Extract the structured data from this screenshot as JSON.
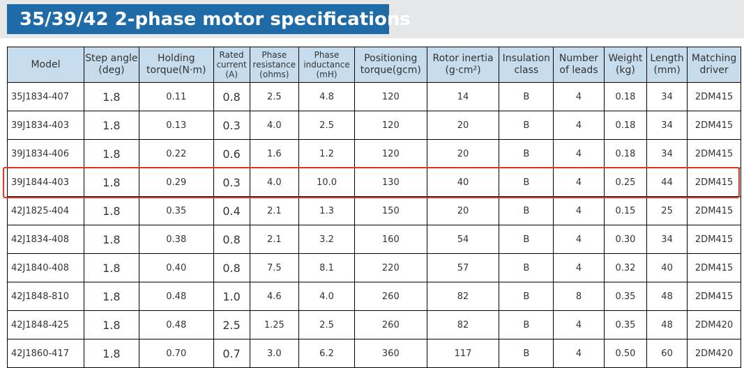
{
  "title": "35/39/42 2-phase motor specifications",
  "highlight_color": "#e8301f",
  "header_color": "#c6dcec",
  "title_color": "#1f6ba8",
  "columns": [
    {
      "l1": "Model",
      "l2": ""
    },
    {
      "l1": "Step angle",
      "l2": "(deg)"
    },
    {
      "l1": "Holding",
      "l2": "torque(N·m)"
    },
    {
      "l1": "Rated current",
      "l2": "(A)"
    },
    {
      "l1": "Phase resistance",
      "l2": "(ohms)"
    },
    {
      "l1": "Phase inductance",
      "l2": "(mH)"
    },
    {
      "l1": "Positioning",
      "l2": "torque(gcm)"
    },
    {
      "l1": "Rotor inertia",
      "l2": "(g·cm²)"
    },
    {
      "l1": "Insulation",
      "l2": "class"
    },
    {
      "l1": "Number",
      "l2": "of leads"
    },
    {
      "l1": "Weight",
      "l2": "(kg)"
    },
    {
      "l1": "Length",
      "l2": "(mm)"
    },
    {
      "l1": "Matching",
      "l2": "driver"
    }
  ],
  "highlighted_row": 3,
  "rows": [
    [
      "35J1834-407",
      "1.8",
      "0.11",
      "0.8",
      "2.5",
      "4.8",
      "120",
      "14",
      "B",
      "4",
      "0.18",
      "34",
      "2DM415"
    ],
    [
      "39J1834-403",
      "1.8",
      "0.13",
      "0.3",
      "4.0",
      "2.5",
      "120",
      "20",
      "B",
      "4",
      "0.18",
      "34",
      "2DM415"
    ],
    [
      "39J1834-406",
      "1.8",
      "0.22",
      "0.6",
      "1.6",
      "1.2",
      "120",
      "20",
      "B",
      "4",
      "0.18",
      "34",
      "2DM415"
    ],
    [
      "39J1844-403",
      "1.8",
      "0.29",
      "0.3",
      "4.0",
      "10.0",
      "130",
      "40",
      "B",
      "4",
      "0.25",
      "44",
      "2DM415"
    ],
    [
      "42J1825-404",
      "1.8",
      "0.35",
      "0.4",
      "2.1",
      "1.3",
      "150",
      "20",
      "B",
      "4",
      "0.15",
      "25",
      "2DM415"
    ],
    [
      "42J1834-408",
      "1.8",
      "0.38",
      "0.8",
      "2.1",
      "3.2",
      "160",
      "54",
      "B",
      "4",
      "0.30",
      "34",
      "2DM415"
    ],
    [
      "42J1840-408",
      "1.8",
      "0.40",
      "0.8",
      "7.5",
      "8.1",
      "220",
      "57",
      "B",
      "4",
      "0.32",
      "40",
      "2DM415"
    ],
    [
      "42J1848-810",
      "1.8",
      "0.48",
      "1.0",
      "4.6",
      "4.0",
      "260",
      "82",
      "B",
      "8",
      "0.35",
      "48",
      "2DM415"
    ],
    [
      "42J1848-425",
      "1.8",
      "0.48",
      "2.5",
      "1.25",
      "2.5",
      "260",
      "82",
      "B",
      "4",
      "0.35",
      "48",
      "2DM420"
    ],
    [
      "42J1860-417",
      "1.8",
      "0.70",
      "0.7",
      "3.0",
      "6.2",
      "360",
      "117",
      "B",
      "4",
      "0.50",
      "60",
      "2DM420"
    ]
  ]
}
